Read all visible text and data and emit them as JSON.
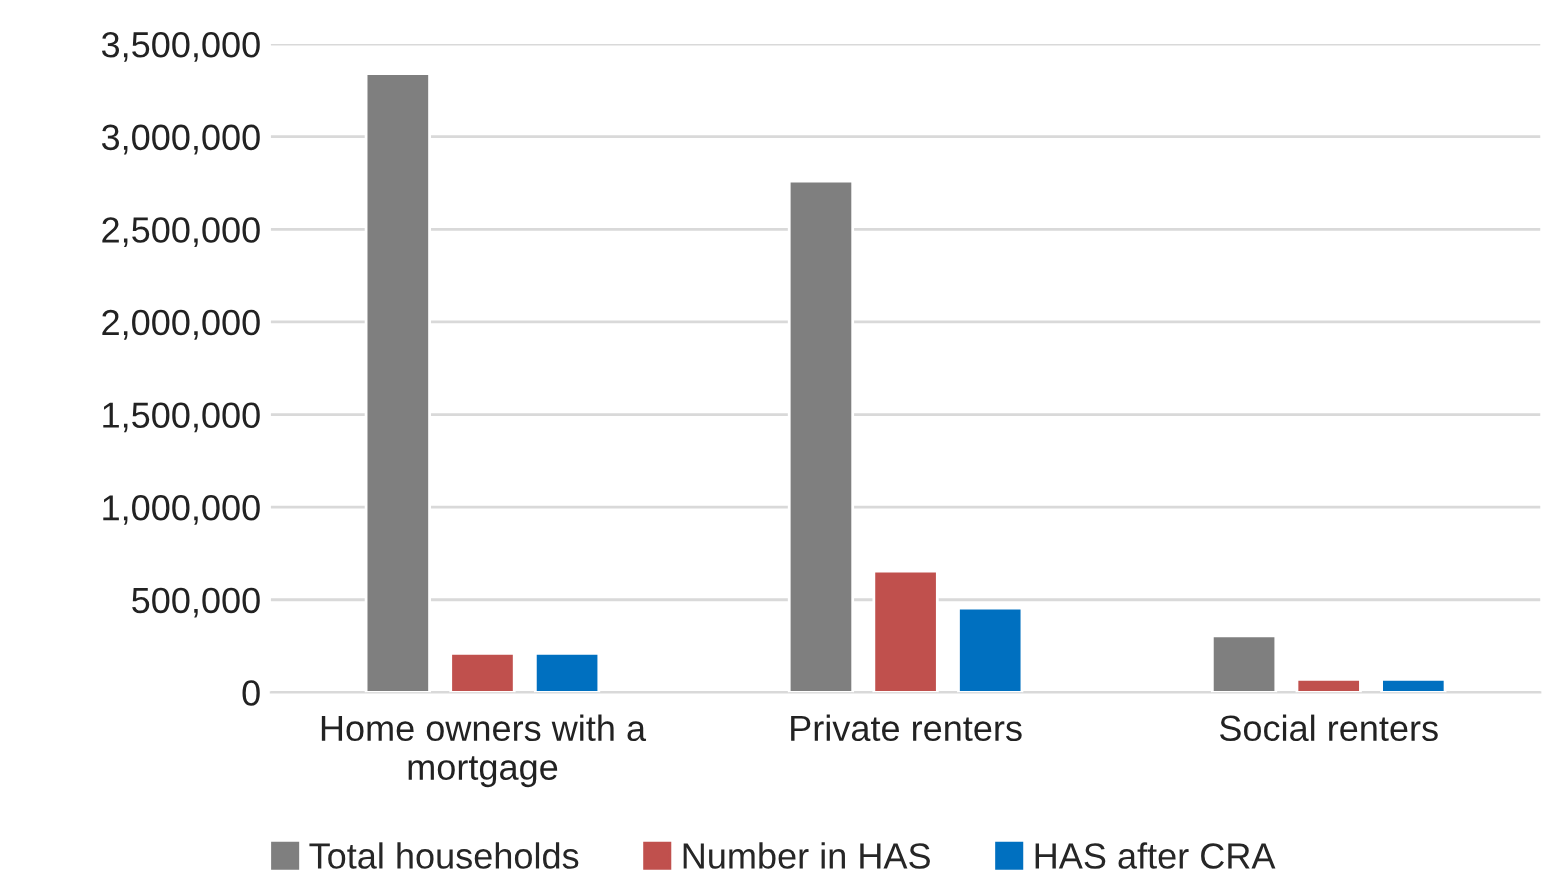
{
  "chart_data": {
    "type": "bar",
    "categories": [
      "Home owners with a mortgage",
      "Private renters",
      "Social renters"
    ],
    "series": [
      {
        "name": "Total households",
        "color": "#7f7f7f",
        "values": [
          3340000,
          2760000,
          305000
        ]
      },
      {
        "name": "Number in HAS",
        "color": "#c0504d",
        "values": [
          210000,
          655000,
          70000
        ]
      },
      {
        "name": "HAS after CRA",
        "color": "#0070c0",
        "values": [
          210000,
          455000,
          70000
        ]
      }
    ],
    "ylim": [
      0,
      3500000
    ],
    "yticks": [
      {
        "value": 0,
        "label": "0"
      },
      {
        "value": 500000,
        "label": "500,000"
      },
      {
        "value": 1000000,
        "label": "1,000,000"
      },
      {
        "value": 1500000,
        "label": "1,500,000"
      },
      {
        "value": 2000000,
        "label": "2,000,000"
      },
      {
        "value": 2500000,
        "label": "2,500,000"
      },
      {
        "value": 3000000,
        "label": "3,000,000"
      },
      {
        "value": 3500000,
        "label": "3,500,000"
      }
    ],
    "grid": "y",
    "legend": "bottom"
  }
}
